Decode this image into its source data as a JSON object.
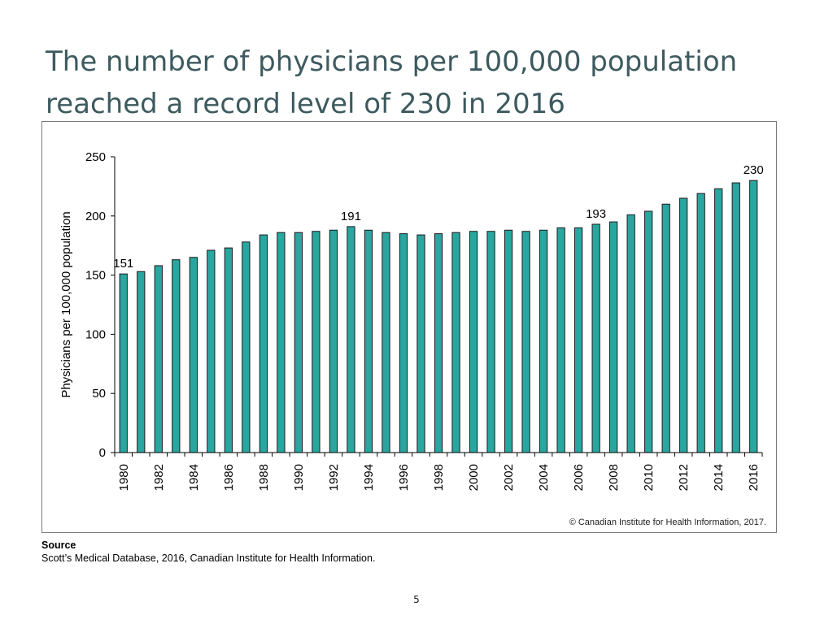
{
  "slide": {
    "title_line1": "The number of physicians per 100,000 population",
    "title_line2": "reached a record level of 230 in 2016",
    "copyright": "© Canadian Institute for Health Information, 2017.",
    "source_heading": "Source",
    "source_text": "Scott’s Medical Database, 2016, Canadian Institute for Health Information.",
    "page_number": "5"
  },
  "colors": {
    "bar_fill": "#2aa6a0",
    "bar_stroke": "#1a1a1a",
    "title": "#3d5a5f"
  },
  "chart_data": {
    "type": "bar",
    "title": "",
    "xlabel": "",
    "ylabel": "Physicians per 100,000 population",
    "ylim": [
      0,
      250
    ],
    "yticks": [
      0,
      50,
      100,
      150,
      200,
      250
    ],
    "grid": false,
    "categories": [
      "1980",
      "1981",
      "1982",
      "1983",
      "1984",
      "1985",
      "1986",
      "1987",
      "1988",
      "1989",
      "1990",
      "1991",
      "1992",
      "1993",
      "1994",
      "1995",
      "1996",
      "1997",
      "1998",
      "1999",
      "2000",
      "2001",
      "2002",
      "2003",
      "2004",
      "2005",
      "2006",
      "2007",
      "2008",
      "2009",
      "2010",
      "2011",
      "2012",
      "2013",
      "2014",
      "2015",
      "2016"
    ],
    "xtick_labels": [
      "1980",
      "1982",
      "1984",
      "1986",
      "1988",
      "1990",
      "1992",
      "1994",
      "1996",
      "1998",
      "2000",
      "2002",
      "2004",
      "2006",
      "2008",
      "2010",
      "2012",
      "2014",
      "2016"
    ],
    "values": [
      151,
      153,
      158,
      163,
      165,
      171,
      173,
      178,
      184,
      186,
      186,
      187,
      188,
      191,
      188,
      186,
      185,
      184,
      185,
      186,
      187,
      187,
      188,
      187,
      188,
      190,
      190,
      193,
      195,
      201,
      204,
      210,
      215,
      219,
      223,
      228,
      230
    ],
    "data_labels": [
      {
        "category": "1980",
        "text": "151"
      },
      {
        "category": "1993",
        "text": "191"
      },
      {
        "category": "2007",
        "text": "193"
      },
      {
        "category": "2016",
        "text": "230"
      }
    ]
  }
}
